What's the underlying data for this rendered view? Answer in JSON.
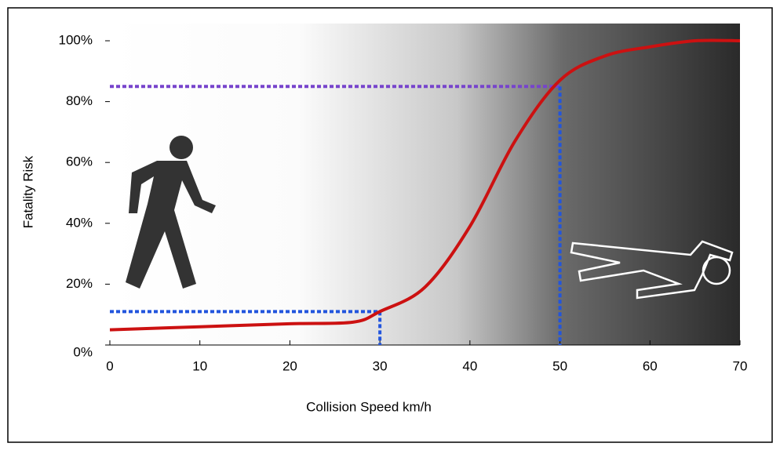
{
  "chart_data": {
    "type": "line",
    "x": [
      0,
      10,
      20,
      27,
      30,
      35,
      40,
      45,
      50,
      55,
      60,
      65,
      70
    ],
    "series": [
      {
        "color": "#cc1111",
        "values": [
          5,
          6,
          7,
          7.5,
          11,
          19,
          39,
          67,
          87,
          95,
          98,
          100,
          100
        ]
      }
    ],
    "xlim": [
      0,
      70
    ],
    "xticks": [
      0,
      10,
      20,
      30,
      40,
      50,
      60,
      70
    ],
    "ylim": [
      0,
      100
    ],
    "yticks": [
      {
        "value": 0,
        "label": "0%"
      },
      {
        "value": 20,
        "label": "20%"
      },
      {
        "value": 40,
        "label": "40%"
      },
      {
        "value": 60,
        "label": "60%"
      },
      {
        "value": 80,
        "label": "80%"
      },
      {
        "value": 100,
        "label": "100%"
      }
    ],
    "xlabel": "Collision Speed km/h",
    "ylabel": "Fatality Risk",
    "guides": [
      {
        "x": 30,
        "y": 11,
        "h_color": "#2255dd",
        "v_color": "#2255dd"
      },
      {
        "x": 50,
        "y": 85,
        "h_color": "#7744cc",
        "v_color": "#2255dd"
      }
    ]
  }
}
